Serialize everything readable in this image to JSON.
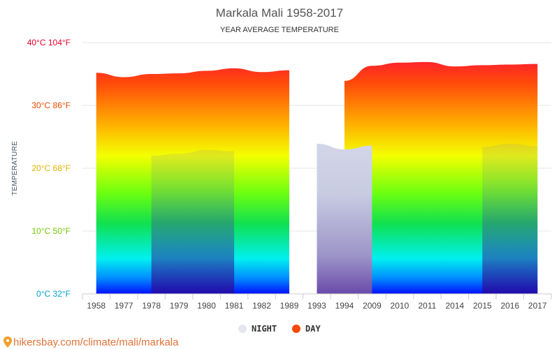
{
  "chart_data": {
    "type": "area",
    "title": "Markala Mali 1958-2017",
    "subtitle": "YEAR AVERAGE TEMPERATURE",
    "ylabel": "TEMPERATURE",
    "ylim": [
      0,
      40
    ],
    "grid": true,
    "legend_placement": "bottom-center",
    "y_ticks": [
      {
        "value": 40,
        "label": "40°C 104°F",
        "color": "#e8002a"
      },
      {
        "value": 30,
        "label": "30°C 86°F",
        "color": "#e84a00"
      },
      {
        "value": 20,
        "label": "20°C 68°F",
        "color": "#e0b400"
      },
      {
        "value": 10,
        "label": "10°C 50°F",
        "color": "#70c800"
      },
      {
        "value": 0,
        "label": "0°C 32°F",
        "color": "#00a0d0"
      }
    ],
    "categories": [
      "1958",
      "1977",
      "1978",
      "1979",
      "1980",
      "1981",
      "1982",
      "1989",
      "1993",
      "1994",
      "2009",
      "2010",
      "2011",
      "2014",
      "2015",
      "2016",
      "2017"
    ],
    "series": [
      {
        "name": "NIGHT",
        "color": "#e4e6f2",
        "values": [
          null,
          null,
          22.0,
          22.3,
          22.9,
          22.7,
          null,
          null,
          23.9,
          23.0,
          23.6,
          null,
          null,
          null,
          23.4,
          23.9,
          23.5
        ]
      },
      {
        "name": "DAY",
        "color": "#f44a0c",
        "values": [
          35.2,
          34.5,
          35.0,
          35.1,
          35.5,
          35.9,
          35.3,
          35.6,
          null,
          33.9,
          36.3,
          36.8,
          36.9,
          36.2,
          36.4,
          36.5,
          36.6
        ]
      }
    ],
    "source": "hikersbay.com/climate/mali/markala"
  }
}
